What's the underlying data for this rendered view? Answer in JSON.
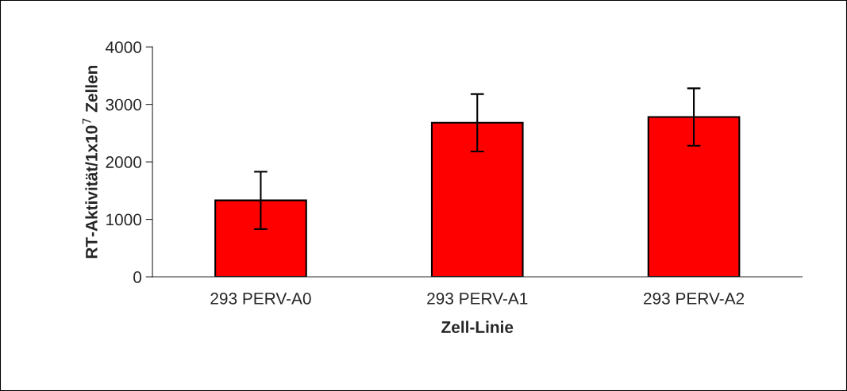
{
  "chart_data": {
    "type": "bar",
    "xlabel": "Zell-Linie",
    "ylabel": "RT-Aktivität/1x10$^{7}$ Zellen",
    "categories": [
      "293 PERV-A0",
      "293 PERV-A1",
      "293 PERV-A2"
    ],
    "values": [
      1330,
      2680,
      2780
    ],
    "errors": [
      500,
      500,
      500
    ],
    "color": "#ff0000",
    "ylim": [
      0,
      4000
    ],
    "yticks": [
      0,
      1000,
      2000,
      3000,
      4000
    ],
    "grid": false,
    "legend": false
  }
}
